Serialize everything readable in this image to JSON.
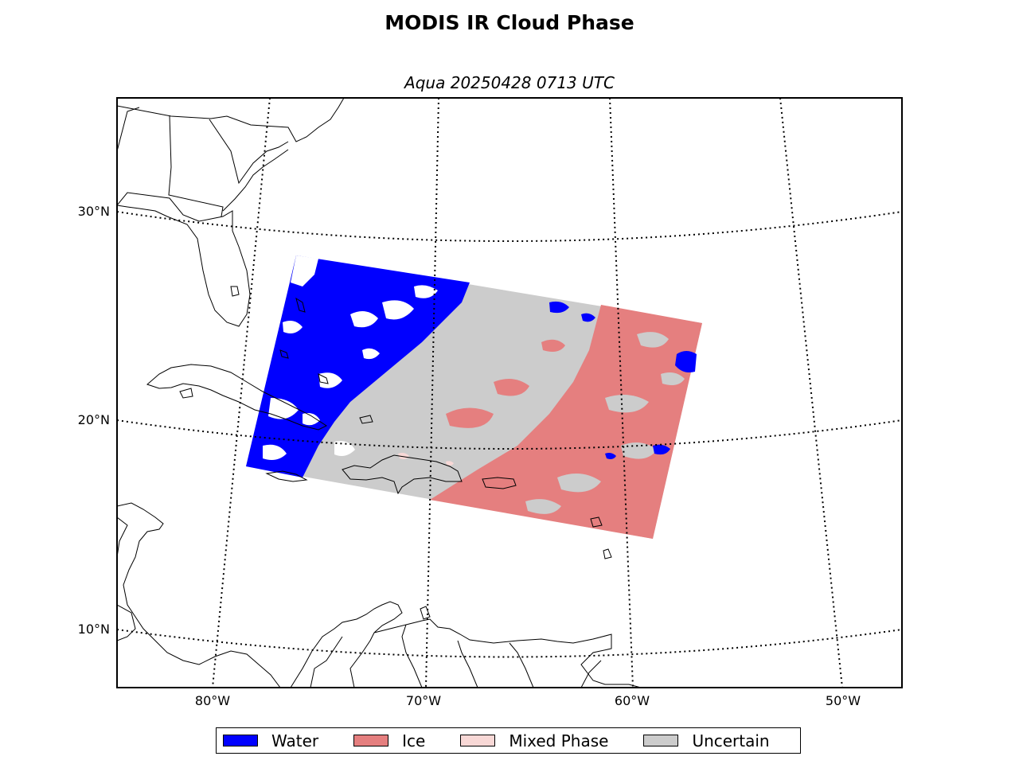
{
  "figure": {
    "title": "MODIS IR Cloud Phase",
    "subtitle": "Aqua 20250428 0713 UTC"
  },
  "map": {
    "projection": "conic",
    "graticule_style": "dotted",
    "lat_ticks": [
      "30°N",
      "20°N",
      "10°N"
    ],
    "lon_ticks": [
      "80°W",
      "70°W",
      "60°W",
      "50°W"
    ],
    "granule": "single MODIS swath over western Atlantic / Caribbean",
    "dominant_phase_west": "Water",
    "dominant_phase_center": "Uncertain",
    "dominant_phase_east": "Ice"
  },
  "legend": {
    "items": [
      {
        "label": "Water",
        "color": "#0000ff"
      },
      {
        "label": "Ice",
        "color": "#e57f7f"
      },
      {
        "label": "Mixed Phase",
        "color": "#f8d8d6"
      },
      {
        "label": "Uncertain",
        "color": "#cccccc"
      }
    ]
  }
}
